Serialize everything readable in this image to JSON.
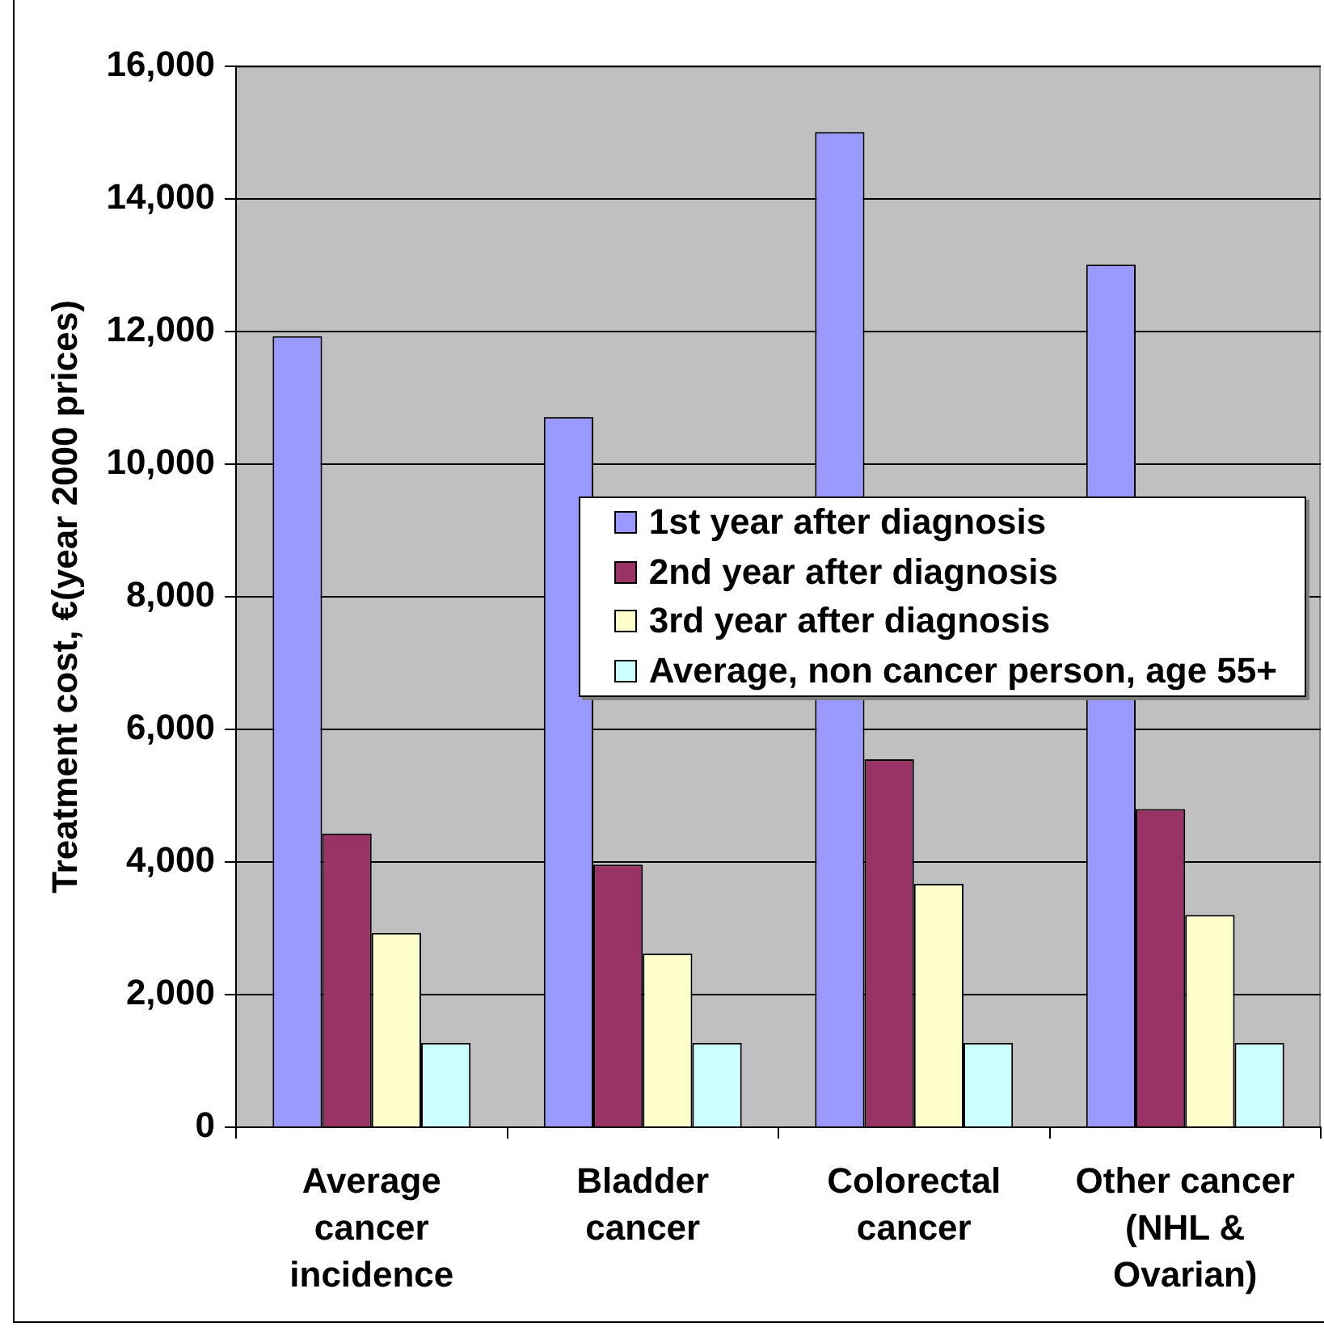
{
  "chart_data": {
    "type": "bar",
    "categories": [
      "Average cancer incidence",
      "Bladder cancer",
      "Colorectal cancer",
      "Other cancer (NHL & Ovarian)"
    ],
    "series": [
      {
        "name": "1st year after diagnosis",
        "color": "#9999ff",
        "values": [
          11930,
          10710,
          15010,
          13010
        ]
      },
      {
        "name": "2nd year after diagnosis",
        "color": "#993366",
        "values": [
          4430,
          3960,
          5550,
          4800
        ]
      },
      {
        "name": "3rd year after diagnosis",
        "color": "#ffffcc",
        "values": [
          2930,
          2620,
          3670,
          3200
        ]
      },
      {
        "name": "Average, non cancer person, age 55+",
        "color": "#ccffff",
        "values": [
          1270,
          1270,
          1270,
          1270
        ]
      }
    ],
    "ylabel": "Treatment cost, €(year 2000 prices)",
    "ylim": [
      0,
      16000
    ],
    "yticks": [
      {
        "value": 0,
        "label": "0"
      },
      {
        "value": 2000,
        "label": "2,000"
      },
      {
        "value": 4000,
        "label": "4,000"
      },
      {
        "value": 6000,
        "label": "6,000"
      },
      {
        "value": 8000,
        "label": "8,000"
      },
      {
        "value": 10000,
        "label": "10,000"
      },
      {
        "value": 12000,
        "label": "12,000"
      },
      {
        "value": 14000,
        "label": "14,000"
      },
      {
        "value": 16000,
        "label": "16,000"
      }
    ],
    "grid": "y",
    "legend": "right"
  }
}
